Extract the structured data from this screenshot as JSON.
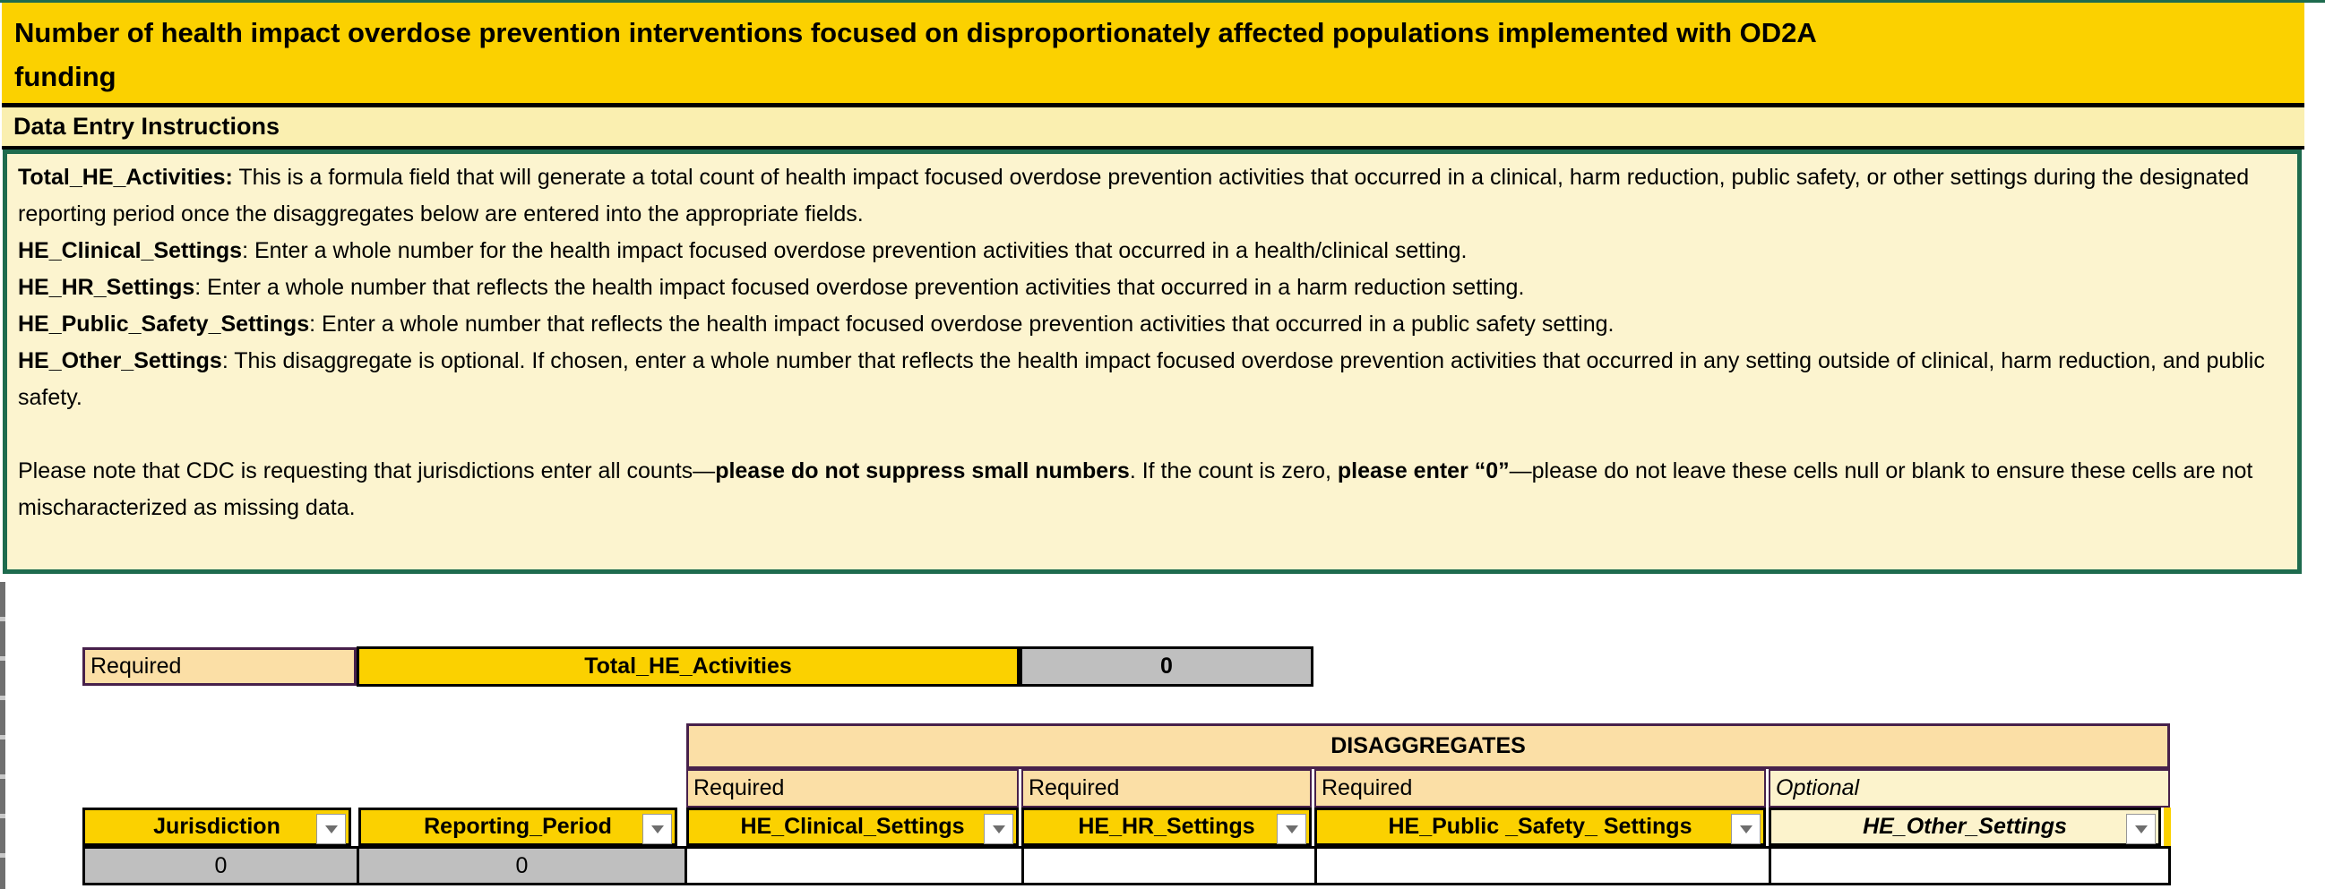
{
  "title": {
    "line1": "Number of health impact overdose prevention interventions focused on disproportionately affected populations implemented with OD2A",
    "line2": "funding"
  },
  "instructions_header": "Data Entry Instructions",
  "instructions": {
    "items": [
      {
        "label": "Total_HE_Activities:",
        "text": " This is a formula field that will generate a total count of health impact focused overdose prevention activities that occurred in a clinical, harm reduction, public safety, or other settings during the designated reporting period once the disaggregates below are entered into the appropriate fields."
      },
      {
        "label": "HE_Clinical_Settings",
        "text": ": Enter a whole number for the health impact focused overdose prevention activities that occurred in a health/clinical setting."
      },
      {
        "label": "HE_HR_Settings",
        "text": ": Enter a whole number that reflects the health impact focused overdose prevention activities that occurred in a harm reduction setting."
      },
      {
        "label": "HE_Public_Safety_Settings",
        "text": ": Enter a whole number that reflects the health impact focused overdose prevention activities that occurred in a public safety setting."
      },
      {
        "label": "HE_Other_Settings",
        "text": ": This disaggregate is optional. If chosen, enter a whole number that reflects the health impact focused overdose prevention activities that occurred in any setting outside of clinical, harm reduction, and public safety."
      }
    ],
    "note": {
      "part1": "Please note that CDC is requesting that jurisdictions enter all counts—",
      "bold1": "please do not suppress small numbers",
      "part2": ". If the count is zero, ",
      "bold2": "please enter “0”",
      "part3": "—please do not leave these cells null or blank to ensure these cells are not mischaracterized as missing data."
    }
  },
  "summary_row": {
    "requirement": "Required",
    "field": "Total_HE_Activities",
    "value": "0"
  },
  "disaggregates": {
    "title": "DISAGGREGATES",
    "requirements": [
      "Required",
      "Required",
      "Required",
      "Optional"
    ],
    "columns": [
      {
        "header": "Jurisdiction",
        "value": "0"
      },
      {
        "header": "Reporting_Period",
        "value": "0"
      },
      {
        "header": "HE_Clinical_Settings",
        "value": ""
      },
      {
        "header": "HE_HR_Settings",
        "value": ""
      },
      {
        "header": "HE_Public _Safety_ Settings",
        "value": ""
      },
      {
        "header": "HE_Other_Settings",
        "value": ""
      }
    ]
  },
  "colors": {
    "gold": "#fbd100",
    "peach": "#fbdfa6",
    "cream": "#fcf3cc",
    "instruction_bg": "#fcf4cf",
    "band_bg": "#faefb0",
    "green_border": "#1e6b4e",
    "purple_border": "#47214b",
    "gray_cell": "#bfbfbf"
  }
}
